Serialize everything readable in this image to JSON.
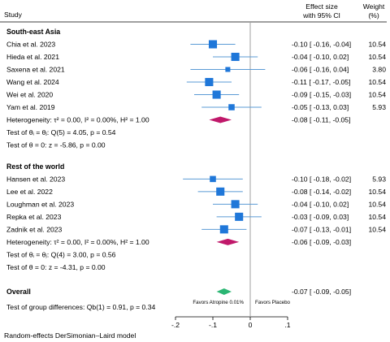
{
  "chart_data": {
    "type": "forest",
    "header": {
      "study": "Study",
      "effect_line1": "Effect size",
      "effect_line2": "with 95% CI",
      "weight_line1": "Weight",
      "weight_line2": "(%)"
    },
    "x_ticks": [
      -0.2,
      -0.1,
      0,
      0.1
    ],
    "x_tick_labels": [
      "-.2",
      "-.1",
      "0",
      ".1"
    ],
    "xlim": [
      -0.2,
      0.1
    ],
    "favors_left": "Favors Atropine 0.01%",
    "favors_right": "Favors Placebo",
    "groups": [
      {
        "name": "South-east Asia",
        "studies": [
          {
            "label": "Chia et al. 2023",
            "es": -0.1,
            "lo": -0.16,
            "hi": -0.04,
            "ci_text": "-0.10 [ -0.16, -0.04]",
            "weight": "10.54",
            "w": 10.54
          },
          {
            "label": "Hieda et al. 2021",
            "es": -0.04,
            "lo": -0.1,
            "hi": 0.02,
            "ci_text": "-0.04 [ -0.10,  0.02]",
            "weight": "10.54",
            "w": 10.54
          },
          {
            "label": "Saxena et al. 2021",
            "es": -0.06,
            "lo": -0.16,
            "hi": 0.04,
            "ci_text": "-0.06 [ -0.16,  0.04]",
            "weight": "3.80",
            "w": 3.8
          },
          {
            "label": "Wang et al. 2024",
            "es": -0.11,
            "lo": -0.17,
            "hi": -0.05,
            "ci_text": "-0.11 [ -0.17, -0.05]",
            "weight": "10.54",
            "w": 10.54
          },
          {
            "label": "Wei et al. 2020",
            "es": -0.09,
            "lo": -0.15,
            "hi": -0.03,
            "ci_text": "-0.09 [ -0.15, -0.03]",
            "weight": "10.54",
            "w": 10.54
          },
          {
            "label": "Yam et al. 2019",
            "es": -0.05,
            "lo": -0.13,
            "hi": 0.03,
            "ci_text": "-0.05 [ -0.13,  0.03]",
            "weight": "5.93",
            "w": 5.93
          }
        ],
        "heterogeneity": "Heterogeneity: τ² = 0.00, I² = 0.00%, H² = 1.00",
        "pooled": {
          "es": -0.08,
          "lo": -0.11,
          "hi": -0.05,
          "ci_text": "-0.08 [ -0.11, -0.05]"
        },
        "test_theta_i": "Test of θᵢ = θⱼ: Q(5) = 4.05, p = 0.54",
        "test_theta_0": "Test of θ = 0: z = -5.86, p = 0.00"
      },
      {
        "name": "Rest of the world",
        "studies": [
          {
            "label": "Hansen et al. 2023",
            "es": -0.1,
            "lo": -0.18,
            "hi": -0.02,
            "ci_text": "-0.10 [ -0.18, -0.02]",
            "weight": "5.93",
            "w": 5.93
          },
          {
            "label": "Lee et al. 2022",
            "es": -0.08,
            "lo": -0.14,
            "hi": -0.02,
            "ci_text": "-0.08 [ -0.14, -0.02]",
            "weight": "10.54",
            "w": 10.54
          },
          {
            "label": "Loughman et al. 2023",
            "es": -0.04,
            "lo": -0.1,
            "hi": 0.02,
            "ci_text": "-0.04 [ -0.10,  0.02]",
            "weight": "10.54",
            "w": 10.54
          },
          {
            "label": "Repka et al. 2023",
            "es": -0.03,
            "lo": -0.09,
            "hi": 0.03,
            "ci_text": "-0.03 [ -0.09,  0.03]",
            "weight": "10.54",
            "w": 10.54
          },
          {
            "label": "Zadnik et al. 2023",
            "es": -0.07,
            "lo": -0.13,
            "hi": -0.01,
            "ci_text": "-0.07 [ -0.13, -0.01]",
            "weight": "10.54",
            "w": 10.54
          }
        ],
        "heterogeneity": "Heterogeneity: τ² = 0.00, I² = 0.00%, H² = 1.00",
        "pooled": {
          "es": -0.06,
          "lo": -0.09,
          "hi": -0.03,
          "ci_text": "-0.06 [ -0.09, -0.03]"
        },
        "test_theta_i": "Test of θᵢ = θⱼ: Q(4) = 3.00, p = 0.56",
        "test_theta_0": "Test of θ = 0: z = -4.31, p = 0.00"
      }
    ],
    "overall": {
      "label": "Overall",
      "es": -0.07,
      "lo": -0.09,
      "hi": -0.05,
      "ci_text": "-0.07 [ -0.09, -0.05]"
    },
    "group_test": "Test of group differences: Qb(1) = 0.91, p = 0.34",
    "footnote": "Random-effects DerSimonian–Laird model",
    "colors": {
      "marker": "#1f77d9",
      "ci_line": "#5b9bd5",
      "subgroup_diamond": "#c0186a",
      "overall_diamond": "#2bb673",
      "null_line": "#888888",
      "axis": "#000000"
    }
  }
}
